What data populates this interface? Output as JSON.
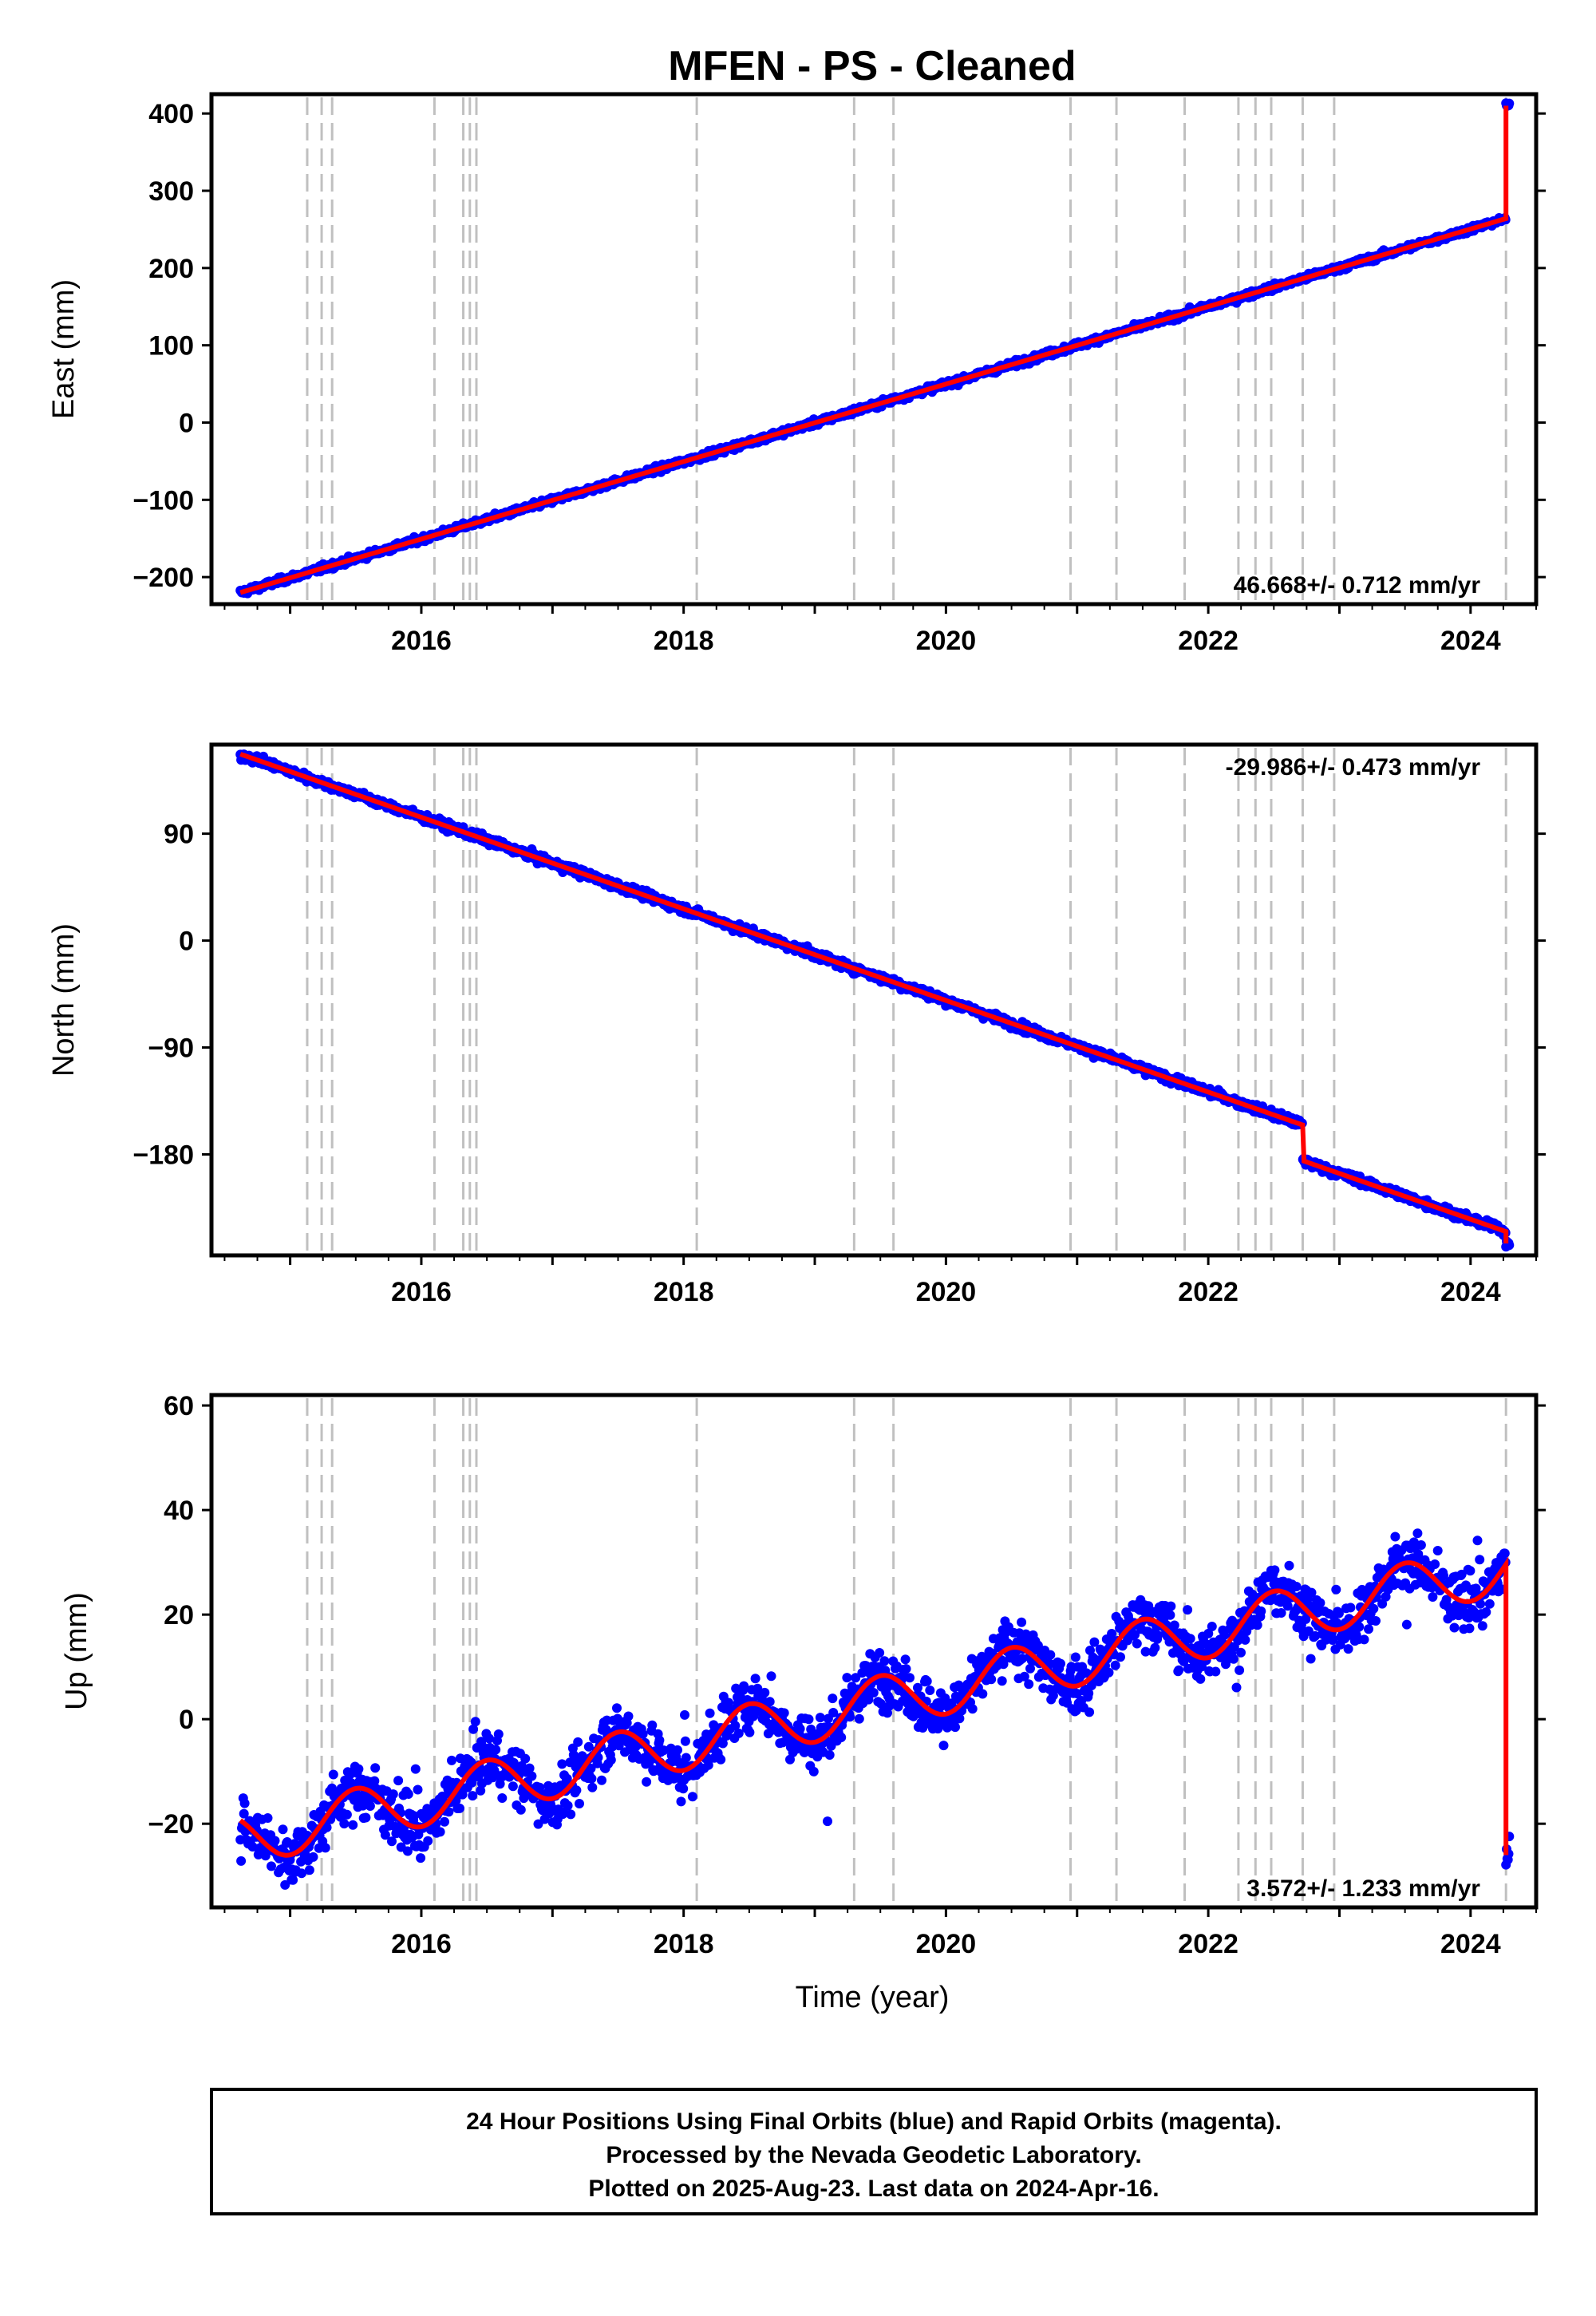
{
  "chart_data": {
    "title": "MFEN  - PS - Cleaned",
    "xlabel": "Time (year)",
    "xlim": [
      2014.4,
      2024.5
    ],
    "x_ticks": [
      2016,
      2018,
      2020,
      2022,
      2024
    ],
    "x_tick_labels": [
      "2016",
      "2018",
      "2020",
      "2022",
      "2024"
    ],
    "events": [
      2015.13,
      2015.24,
      2015.32,
      2016.1,
      2016.32,
      2016.37,
      2016.42,
      2018.1,
      2019.3,
      2019.6,
      2020.95,
      2021.3,
      2021.82,
      2022.23,
      2022.36,
      2022.48,
      2022.72,
      2022.96,
      2024.27
    ],
    "colors": {
      "data": "#0000ff",
      "model": "#ff0000",
      "event": "#c0c0c0"
    },
    "panels": [
      {
        "type": "scatter",
        "ylabel": "East (mm)",
        "ylim": [
          -235,
          425
        ],
        "y_ticks": [
          -200,
          -100,
          0,
          100,
          200,
          300,
          400
        ],
        "y_tick_labels": [
          "−200",
          "−100",
          "0",
          "100",
          "200",
          "300",
          "400"
        ],
        "rate": "46.668+/- 0.712 mm/yr",
        "rate_pos": "bottom-right",
        "trend": {
          "start": 2014.62,
          "end": 2024.27,
          "y0": -220,
          "y1": 264,
          "jump_to": 410
        }
      },
      {
        "type": "scatter",
        "ylabel": "North (mm)",
        "ylim": [
          -265,
          165
        ],
        "y_ticks": [
          -180,
          -90,
          0,
          90
        ],
        "y_tick_labels": [
          "−180",
          "−90",
          "0",
          "90"
        ],
        "rate": "-29.986+/- 0.473 mm/yr",
        "rate_pos": "top-right",
        "trend": {
          "start": 2014.62,
          "end": 2024.27,
          "y0": 157,
          "y1": -215,
          "step_at": 2022.72,
          "step": -30,
          "jump_to": -255
        }
      },
      {
        "type": "scatter",
        "ylabel": "Up (mm)",
        "ylim": [
          -36,
          62
        ],
        "y_ticks": [
          -20,
          0,
          20,
          40,
          60
        ],
        "y_tick_labels": [
          "−20",
          "0",
          "20",
          "40",
          "60"
        ],
        "rate": "3.572+/- 1.233 mm/yr",
        "rate_pos": "bottom-right",
        "trend": {
          "start": 2014.62,
          "end": 2024.27,
          "y0": -23,
          "y1": 29,
          "amplitude": 5,
          "jump_to": -26
        }
      }
    ]
  },
  "footer": {
    "line1": "24 Hour Positions Using Final Orbits (blue) and Rapid Orbits (magenta).",
    "line2": "Processed by the Nevada Geodetic Laboratory.",
    "line3": "Plotted on 2025-Aug-23. Last data on 2024-Apr-16."
  }
}
